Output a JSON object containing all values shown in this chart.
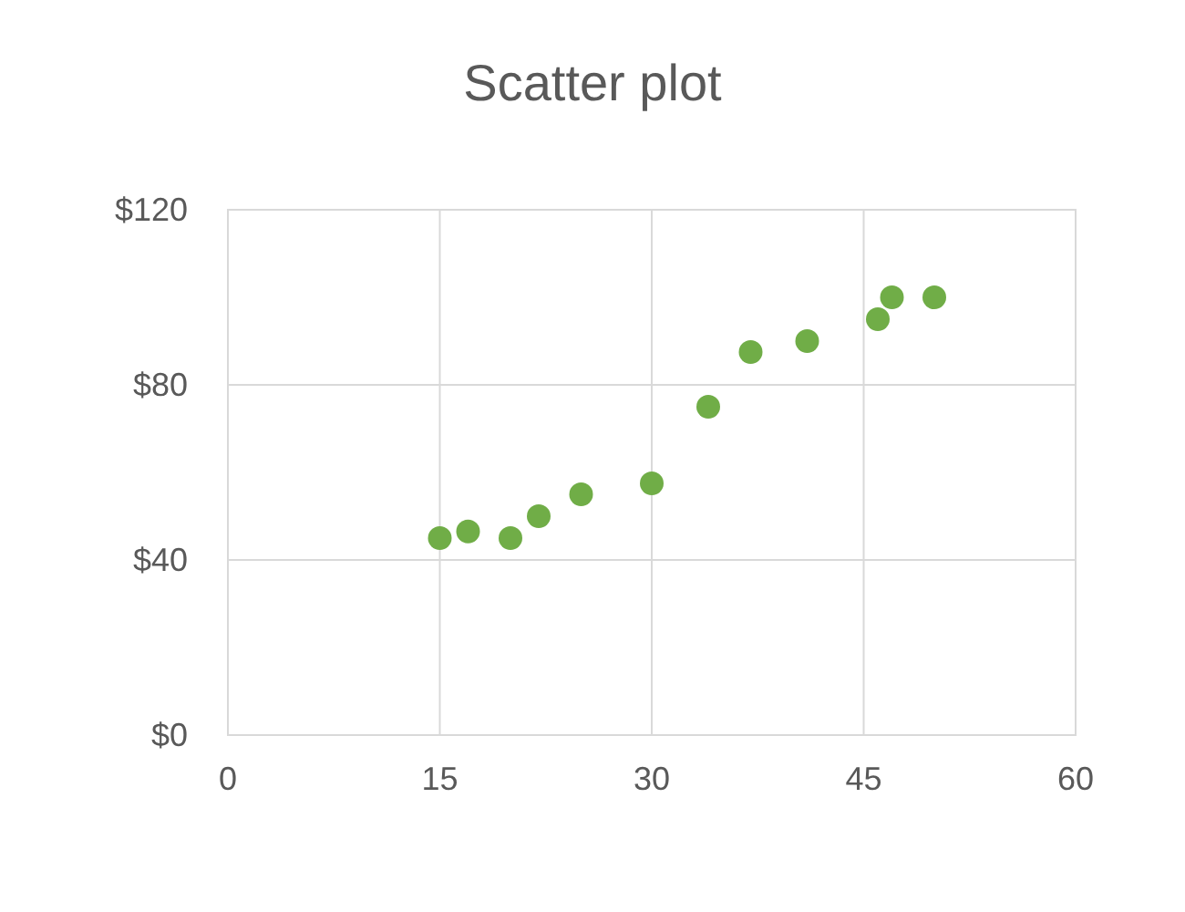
{
  "chart_data": {
    "type": "scatter",
    "title": "Scatter plot",
    "x": [
      15,
      17,
      20,
      22,
      25,
      30,
      34,
      37,
      41,
      46,
      47,
      50
    ],
    "series": [
      {
        "color": "#70ad47",
        "values": [
          45,
          46.5,
          45,
          50,
          55,
          57.5,
          75,
          87.5,
          90,
          95,
          100,
          100
        ]
      }
    ],
    "xlim": [
      0,
      60
    ],
    "xticks": [
      0,
      15,
      30,
      45,
      60
    ],
    "ylim": [
      0,
      120
    ],
    "yticks": [
      {
        "value": 0,
        "label": "$0"
      },
      {
        "value": 40,
        "label": "$40"
      },
      {
        "value": 80,
        "label": "$80"
      },
      {
        "value": 120,
        "label": "$120"
      }
    ],
    "grid": true,
    "marker": "circle"
  }
}
